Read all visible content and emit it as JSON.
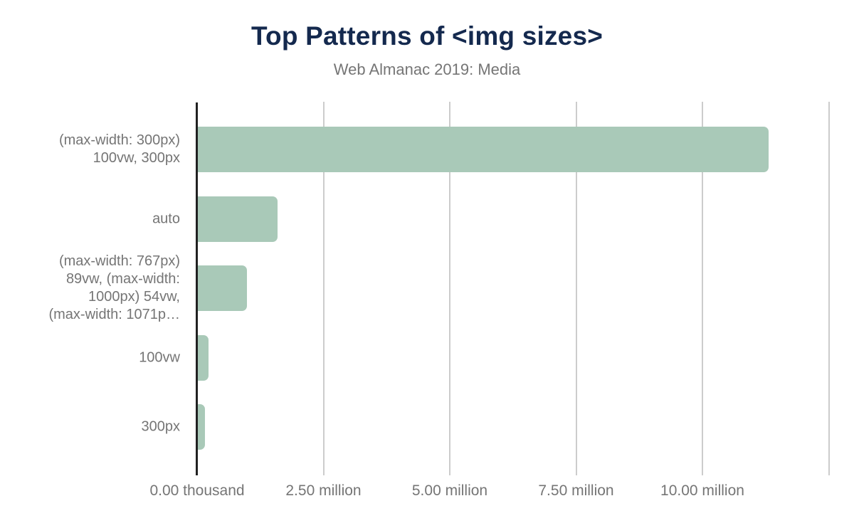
{
  "header": {
    "title": "Top Patterns of <img sizes>",
    "subtitle": "Web Almanac 2019: Media"
  },
  "colors": {
    "title_navy": "#14294e",
    "label_gray": "#757575",
    "bar_green": "#a9c9b8",
    "gridline_gray": "#cccccc",
    "axis_dark": "#212121",
    "background": "#ffffff"
  },
  "chart_data": {
    "type": "bar",
    "orientation": "horizontal",
    "title": "Top Patterns of <img sizes>",
    "subtitle": "Web Almanac 2019: Media",
    "xlabel": "",
    "ylabel": "",
    "grid": true,
    "legend": false,
    "xlim_millions": [
      0,
      12.55
    ],
    "x_gridlines_millions": [
      0,
      2.5,
      5,
      7.5,
      10,
      12.5
    ],
    "x_ticks": [
      {
        "value_millions": 0,
        "label": "0.00 thousand"
      },
      {
        "value_millions": 2.5,
        "label": "2.50 million"
      },
      {
        "value_millions": 5,
        "label": "5.00 million"
      },
      {
        "value_millions": 7.5,
        "label": "7.50 million"
      },
      {
        "value_millions": 10,
        "label": "10.00 million"
      }
    ],
    "bars": [
      {
        "category": "(max-width: 300px) 100vw, 300px",
        "display_label": "(max-width: 300px)\n100vw, 300px",
        "value_millions": 11.3
      },
      {
        "category": "auto",
        "display_label": "auto",
        "value_millions": 1.58
      },
      {
        "category": "(max-width: 767px) 89vw, (max-width: 1000px) 54vw, (max-width: 1071p…",
        "display_label": "(max-width: 767px)\n89vw, (max-width:\n1000px) 54vw,\n(max-width: 1071p…",
        "value_millions": 0.97
      },
      {
        "category": "100vw",
        "display_label": "100vw",
        "value_millions": 0.21
      },
      {
        "category": "300px",
        "display_label": "300px",
        "value_millions": 0.14
      }
    ]
  }
}
